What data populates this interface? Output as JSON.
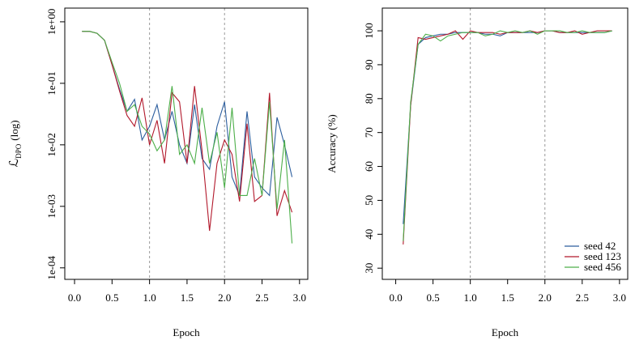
{
  "chart_data": [
    {
      "type": "line",
      "xlabel": "Epoch",
      "ylabel_parts": [
        "ℒ",
        "DPO",
        "(log)"
      ],
      "log_y": true,
      "xlim": [
        -0.13,
        3.11
      ],
      "ylim": [
        6.5e-05,
        1.67
      ],
      "xticks": [
        {
          "value": 0,
          "label": "0.0"
        },
        0.5,
        {
          "value": 1,
          "label": "1.0"
        },
        1.5,
        {
          "value": 2,
          "label": "2.0"
        },
        2.5,
        {
          "value": 3,
          "label": "3.0"
        }
      ],
      "yticks": [
        {
          "value": 1,
          "label": "1e+00"
        },
        {
          "value": 0.1,
          "label": "1e-01"
        },
        {
          "value": 0.01,
          "label": "1e-02"
        },
        {
          "value": 0.001,
          "label": "1e-03"
        },
        {
          "value": 0.0001,
          "label": "1e-04"
        }
      ],
      "vlines": [
        1,
        2
      ],
      "x": [
        0.1,
        0.2,
        0.3,
        0.4,
        0.5,
        0.6,
        0.7,
        0.8,
        0.9,
        1.0,
        1.1,
        1.2,
        1.3,
        1.4,
        1.5,
        1.6,
        1.7,
        1.8,
        1.9,
        2.0,
        2.1,
        2.2,
        2.3,
        2.4,
        2.5,
        2.6,
        2.7,
        2.8,
        2.9
      ],
      "series": [
        {
          "color": "#2c5e9e",
          "values": [
            0.7,
            0.7,
            0.65,
            0.5,
            0.2,
            0.08,
            0.035,
            0.055,
            0.012,
            0.02,
            0.045,
            0.012,
            0.035,
            0.01,
            0.005,
            0.045,
            0.006,
            0.004,
            0.02,
            0.05,
            0.003,
            0.0015,
            0.035,
            0.003,
            0.002,
            0.0015,
            0.028,
            0.01,
            0.003
          ]
        },
        {
          "color": "#b2182b",
          "values": [
            0.7,
            0.7,
            0.65,
            0.5,
            0.2,
            0.075,
            0.03,
            0.02,
            0.058,
            0.01,
            0.025,
            0.005,
            0.07,
            0.05,
            0.005,
            0.09,
            0.008,
            0.0004,
            0.005,
            0.012,
            0.007,
            0.0012,
            0.022,
            0.0012,
            0.0015,
            0.07,
            0.0007,
            0.0018,
            0.0008
          ]
        },
        {
          "color": "#4daf4a",
          "values": [
            0.7,
            0.7,
            0.65,
            0.5,
            0.22,
            0.1,
            0.035,
            0.045,
            0.02,
            0.015,
            0.008,
            0.012,
            0.09,
            0.007,
            0.01,
            0.005,
            0.04,
            0.005,
            0.016,
            0.002,
            0.04,
            0.0015,
            0.0015,
            0.006,
            0.0015,
            0.05,
            0.0009,
            0.012,
            0.00025
          ]
        }
      ]
    },
    {
      "type": "line",
      "xlabel": "Epoch",
      "ylabel": "Accuracy (%)",
      "legend": "bottomright",
      "xlim": [
        -0.18,
        3.11
      ],
      "ylim": [
        26.7,
        106.7
      ],
      "xticks": [
        {
          "value": 0,
          "label": "0.0"
        },
        0.5,
        {
          "value": 1,
          "label": "1.0"
        },
        1.5,
        {
          "value": 2,
          "label": "2.0"
        },
        2.5,
        {
          "value": 3,
          "label": "3.0"
        }
      ],
      "yticks": [
        30,
        40,
        50,
        60,
        70,
        80,
        90,
        100
      ],
      "vlines": [
        1,
        2
      ],
      "x": [
        0.1,
        0.2,
        0.3,
        0.4,
        0.5,
        0.6,
        0.7,
        0.8,
        0.9,
        1.0,
        1.1,
        1.2,
        1.3,
        1.4,
        1.5,
        1.6,
        1.7,
        1.8,
        1.9,
        2.0,
        2.1,
        2.2,
        2.3,
        2.4,
        2.5,
        2.6,
        2.7,
        2.8,
        2.9
      ],
      "series": [
        {
          "name": "seed 42",
          "color": "#2c5e9e",
          "values": [
            43,
            78,
            96,
            98,
            98.5,
            99,
            99,
            99.5,
            99.5,
            99.5,
            99.5,
            99,
            99,
            98.5,
            99.5,
            99.5,
            99.5,
            99.5,
            99.5,
            100,
            100,
            99.5,
            99.5,
            99.5,
            99.5,
            99.5,
            99.5,
            99.5,
            100
          ]
        },
        {
          "name": "seed 123",
          "color": "#b2182b",
          "values": [
            37,
            78,
            98,
            97.5,
            98,
            98.5,
            99,
            100,
            97.5,
            100,
            99.5,
            99.5,
            99.5,
            99,
            99.5,
            99.5,
            99.5,
            100,
            99.5,
            100,
            100,
            99.5,
            99.5,
            100,
            99,
            99.5,
            100,
            100,
            100
          ]
        },
        {
          "name": "seed 456",
          "color": "#4daf4a",
          "values": [
            38,
            79,
            96,
            99,
            98.5,
            97,
            98.5,
            99,
            99.5,
            99.5,
            99.5,
            98.5,
            99,
            100,
            99.5,
            100,
            99.5,
            100,
            99,
            100,
            100,
            100,
            99.5,
            99.5,
            100,
            99.5,
            99.5,
            99.5,
            100
          ]
        }
      ]
    }
  ]
}
